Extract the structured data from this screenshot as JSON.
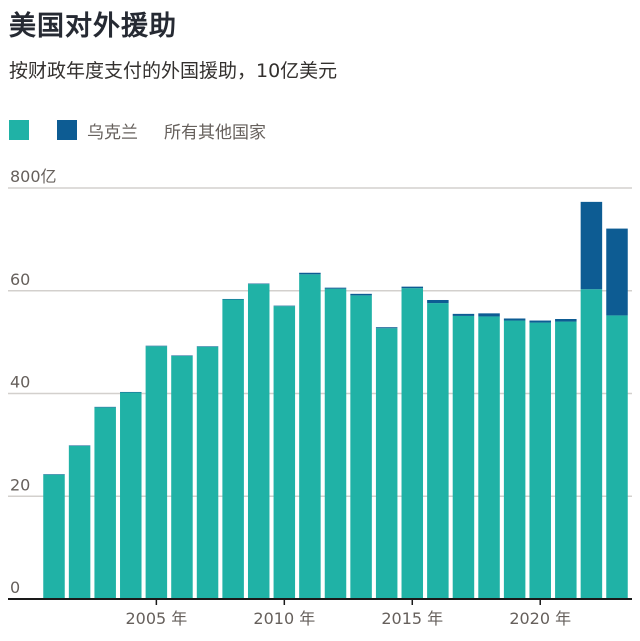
{
  "header": {
    "title": "美国对外援助",
    "subtitle": "按财政年度支付的外国援助，10亿美元"
  },
  "legend": {
    "items": [
      {
        "label": "",
        "color": "#20b2a6"
      },
      {
        "label": "乌克兰",
        "color": "#0d5c93"
      },
      {
        "label": "所有其他国家",
        "color": ""
      }
    ]
  },
  "chart_data": {
    "type": "bar",
    "stacked": true,
    "title": "美国对外援助",
    "subtitle": "按财政年度支付的外国援助，10亿美元",
    "xlabel": "",
    "ylabel": "",
    "x": [
      2001,
      2002,
      2003,
      2004,
      2005,
      2006,
      2007,
      2008,
      2009,
      2010,
      2011,
      2012,
      2013,
      2014,
      2015,
      2016,
      2017,
      2018,
      2019,
      2020,
      2021,
      2022,
      2023
    ],
    "x_tick_labels": [
      "2005 年",
      "2010 年",
      "2015 年",
      "2020 年"
    ],
    "x_tick_values": [
      2005,
      2010,
      2015,
      2020
    ],
    "y_tick_labels": [
      "0",
      "20",
      "40",
      "60",
      "800亿"
    ],
    "y_tick_values": [
      0,
      20,
      40,
      60,
      80
    ],
    "ylim": [
      0,
      80
    ],
    "grid": true,
    "legend_position": "top-left",
    "series": [
      {
        "name": "所有其他国家",
        "color": "#20b2a6",
        "values": [
          24.2,
          29.8,
          37.3,
          40.2,
          49.2,
          47.3,
          49.1,
          58.3,
          61.3,
          57.0,
          63.2,
          60.4,
          59.1,
          52.7,
          60.5,
          57.6,
          55.1,
          55.0,
          54.2,
          53.8,
          54.0,
          60.3,
          55.2
        ]
      },
      {
        "name": "乌克兰",
        "color": "#0d5c93",
        "values": [
          0.1,
          0.1,
          0.1,
          0.1,
          0.1,
          0.1,
          0.1,
          0.1,
          0.1,
          0.1,
          0.3,
          0.2,
          0.3,
          0.2,
          0.3,
          0.6,
          0.4,
          0.6,
          0.4,
          0.4,
          0.5,
          17.0,
          16.9
        ]
      }
    ]
  }
}
